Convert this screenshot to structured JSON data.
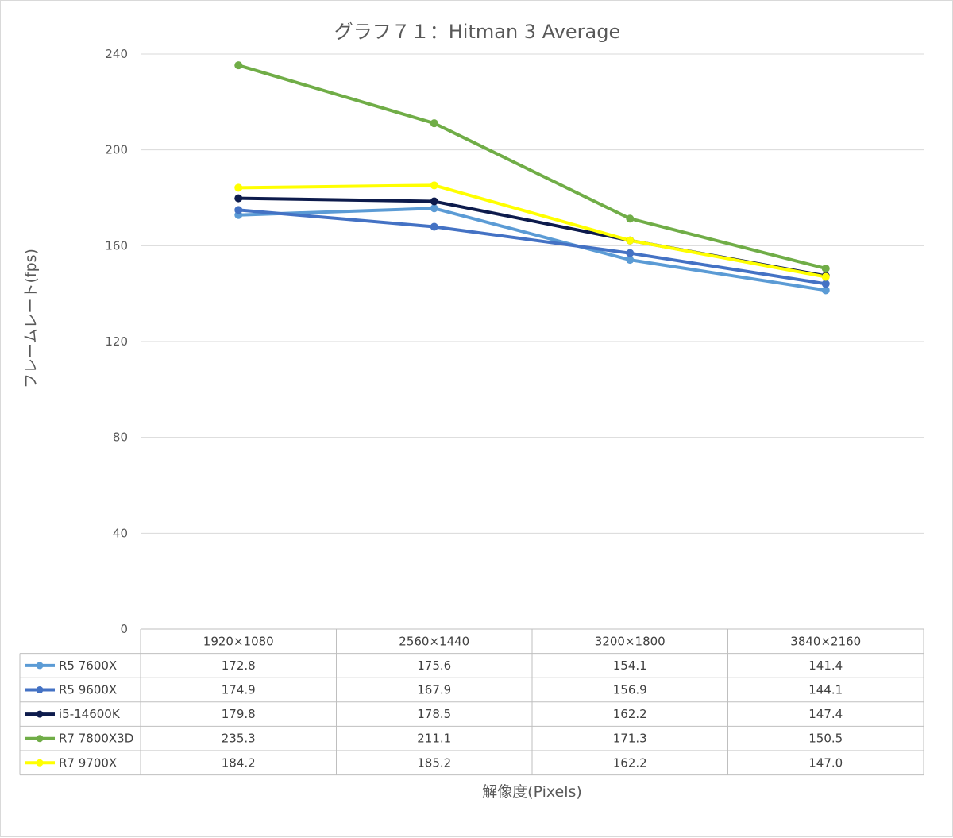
{
  "chart_data": {
    "type": "line",
    "title": "グラフ７１：Hitman 3 Average",
    "xlabel": "解像度(Pixels)",
    "ylabel": "フレームレート(fps)",
    "ylim": [
      0,
      240
    ],
    "yticks": [
      0,
      40,
      80,
      120,
      160,
      200,
      240
    ],
    "grid": true,
    "legend": "data-table",
    "categories": [
      "1920×1080",
      "2560×1440",
      "3200×1800",
      "3840×2160"
    ],
    "series": [
      {
        "name": "R5 7600X",
        "color": "#5b9bd5",
        "values": [
          172.8,
          175.6,
          154.1,
          141.4
        ],
        "labels": [
          "172.8",
          "175.6",
          "154.1",
          "141.4"
        ]
      },
      {
        "name": "R5 9600X",
        "color": "#4472c4",
        "values": [
          174.9,
          167.9,
          156.9,
          144.1
        ],
        "labels": [
          "174.9",
          "167.9",
          "156.9",
          "144.1"
        ]
      },
      {
        "name": "i5-14600K",
        "color": "#0d1b4c",
        "values": [
          179.8,
          178.5,
          162.2,
          147.4
        ],
        "labels": [
          "179.8",
          "178.5",
          "162.2",
          "147.4"
        ]
      },
      {
        "name": "R7 7800X3D",
        "color": "#70ad47",
        "values": [
          235.3,
          211.1,
          171.3,
          150.5
        ],
        "labels": [
          "235.3",
          "211.1",
          "171.3",
          "150.5"
        ]
      },
      {
        "name": "R7 9700X",
        "color": "#ffff00",
        "values": [
          184.2,
          185.2,
          162.2,
          147.0
        ],
        "labels": [
          "184.2",
          "185.2",
          "162.2",
          "147.0"
        ]
      }
    ]
  }
}
